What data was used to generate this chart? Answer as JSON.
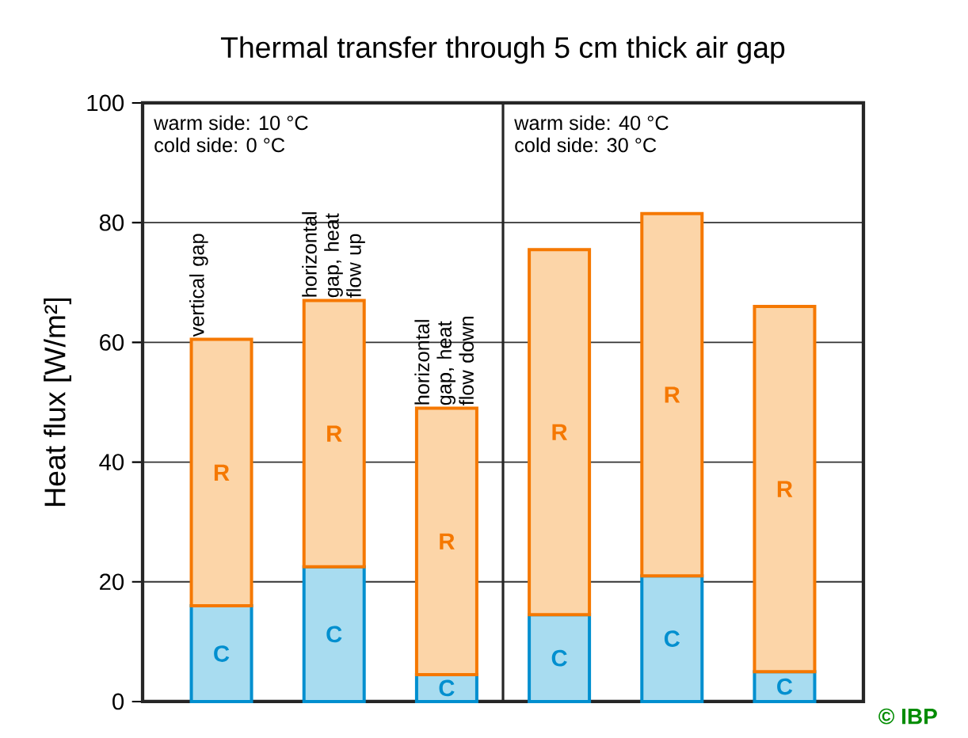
{
  "chart_data": {
    "type": "bar",
    "stacked": true,
    "title": "Thermal transfer through 5 cm thick air gap",
    "ylabel": "Heat flux [W/m²]",
    "categories": [
      "vertical gap",
      "horizontal gap, heat flow up",
      "horizontal gap, heat flow down",
      null,
      null,
      null
    ],
    "series": [
      {
        "name": "C",
        "color": "#a8dcf0",
        "values": [
          16,
          22.5,
          4.5,
          14.5,
          21,
          5
        ]
      },
      {
        "name": "R",
        "color": "#fcd5a8",
        "values": [
          44.5,
          44.5,
          44.5,
          61,
          60.5,
          61
        ]
      }
    ],
    "ylim": [
      0,
      100
    ],
    "yticks": [
      0,
      20,
      40,
      60,
      80,
      100
    ],
    "grid": "y",
    "annotations": [
      "warm side: 10 °C",
      "cold side: 0 °C",
      "warm side: 40 °C",
      "cold side: 30 °C",
      "© IBP"
    ]
  }
}
